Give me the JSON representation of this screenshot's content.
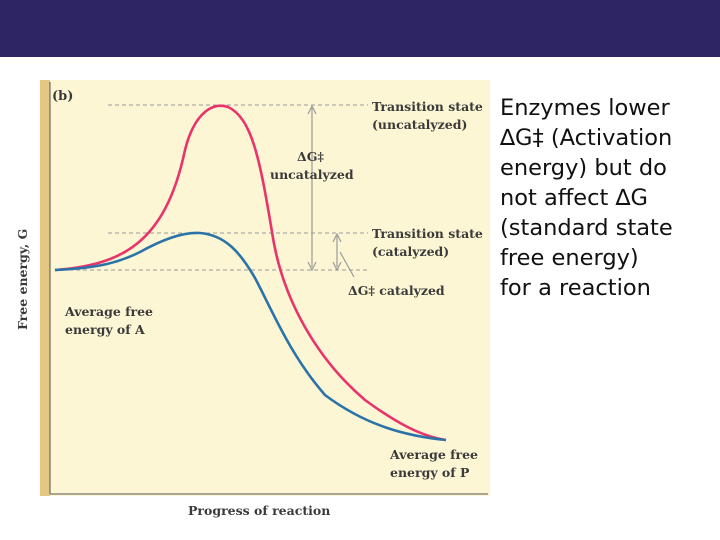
{
  "colors": {
    "header_bar": "#2e2565",
    "panel": "#fdf6d4",
    "panel_border": "#e3c782",
    "uncatalyzed_curve": "#e8336b",
    "catalyzed_curve": "#2a73a8",
    "guide_lines": "#9a9a9a"
  },
  "figure": {
    "panel_label": "(b)",
    "y_axis_label": "Free energy, G",
    "x_axis_label": "Progress of reaction",
    "labels": {
      "ts_uncatalyzed_1": "Transition state",
      "ts_uncatalyzed_2": "(uncatalyzed)",
      "ts_catalyzed_1": "Transition state",
      "ts_catalyzed_2": "(catalyzed)",
      "dg_uncat_1": "ΔG‡",
      "dg_uncat_2": "uncatalyzed",
      "dg_cat": "ΔG‡ catalyzed",
      "avg_a_1": "Average free",
      "avg_a_2": "energy of A",
      "avg_p_1": "Average free",
      "avg_p_2": "energy of P"
    }
  },
  "caption": {
    "lines": [
      "Enzymes lower",
      "∆G‡ (Activation",
      "energy) but do",
      "not affect ∆G",
      "(standard state",
      "free energy)",
      "for a reaction"
    ]
  }
}
